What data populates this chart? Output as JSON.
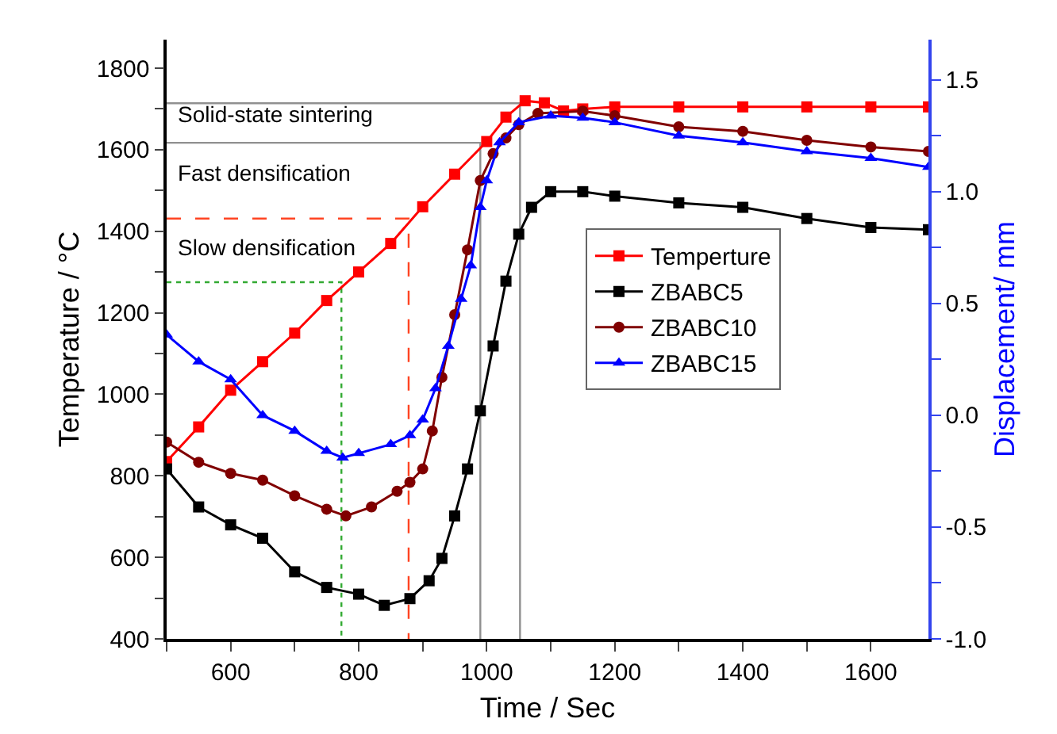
{
  "chart_data": {
    "type": "line",
    "xlabel": "Time / Sec",
    "ylabel": "Temperature / °C",
    "y2label": "Displacement/ mm",
    "xlim": [
      500,
      1690
    ],
    "ylim": [
      400,
      1870
    ],
    "y2lim": [
      -1.0,
      1.68
    ],
    "xticks": [
      {
        "value": 500,
        "label": null
      },
      600,
      {
        "value": 700,
        "label": null
      },
      800,
      {
        "value": 900,
        "label": null
      },
      1000,
      {
        "value": 1100,
        "label": null
      },
      1200,
      {
        "value": 1300,
        "label": null
      },
      1400,
      {
        "value": 1500,
        "label": null
      },
      1600
    ],
    "yticks": [
      400,
      {
        "value": 500,
        "label": null
      },
      600,
      {
        "value": 700,
        "label": null
      },
      800,
      {
        "value": 900,
        "label": null
      },
      1000,
      {
        "value": 1100,
        "label": null
      },
      1200,
      {
        "value": 1300,
        "label": null
      },
      1400,
      {
        "value": 1500,
        "label": null
      },
      1600,
      {
        "value": 1700,
        "label": null
      },
      1800
    ],
    "y2ticks": [
      {
        "value": -1.0,
        "label": "-1.0"
      },
      {
        "value": -0.75,
        "label": null
      },
      {
        "value": -0.5,
        "label": "-0.5"
      },
      {
        "value": -0.25,
        "label": null
      },
      {
        "value": 0,
        "label": "0.0"
      },
      {
        "value": 0.25,
        "label": null
      },
      {
        "value": 0.5,
        "label": "0.5"
      },
      {
        "value": 0.75,
        "label": null
      },
      {
        "value": 1.0,
        "label": "1.0"
      },
      {
        "value": 1.25,
        "label": null
      },
      {
        "value": 1.5,
        "label": "1.5"
      }
    ],
    "grid": false,
    "legend": "right",
    "annotations": [
      "Solid-state sintering",
      "Fast densification",
      "Slow densification"
    ],
    "series": [
      {
        "color": "#909090",
        "line_style": "solid",
        "marker": "none",
        "x": [
          500,
          1052,
          1052
        ],
        "values": [
          1714,
          1714,
          400
        ]
      },
      {
        "color": "#909090",
        "line_style": "solid",
        "marker": "none",
        "x": [
          500,
          990,
          990
        ],
        "values": [
          1617,
          1617,
          400
        ]
      },
      {
        "color": "#ff4422",
        "line_style": "dashed",
        "marker": "none",
        "x": [
          500,
          878,
          878
        ],
        "values": [
          1431,
          1431,
          400
        ]
      },
      {
        "color": "#33aa33",
        "line_style": "dotted",
        "marker": "none",
        "x": [
          500,
          773,
          773
        ],
        "values": [
          1275,
          1275,
          400
        ]
      },
      {
        "name": "Temperture",
        "color": "#ff0000",
        "marker": "square",
        "x": [
          500,
          550,
          600,
          650,
          700,
          750,
          800,
          850,
          900,
          950,
          1000,
          1030,
          1060,
          1090,
          1120,
          1150,
          1200,
          1300,
          1400,
          1500,
          1600,
          1690
        ],
        "values": [
          835,
          920,
          1010,
          1080,
          1150,
          1230,
          1300,
          1370,
          1460,
          1540,
          1620,
          1680,
          1720,
          1715,
          1695,
          1700,
          1705,
          1705,
          1705,
          1705,
          1705,
          1705
        ]
      },
      {
        "name": "ZBABC5",
        "axis": "y2",
        "color": "#000000",
        "marker": "square",
        "x": [
          500,
          550,
          600,
          650,
          700,
          750,
          800,
          840,
          880,
          910,
          930,
          950,
          970,
          990,
          1010,
          1030,
          1050,
          1070,
          1100,
          1150,
          1200,
          1300,
          1400,
          1500,
          1600,
          1690
        ],
        "values": [
          -0.24,
          -0.41,
          -0.49,
          -0.55,
          -0.7,
          -0.77,
          -0.8,
          -0.85,
          -0.82,
          -0.74,
          -0.64,
          -0.45,
          -0.24,
          0.02,
          0.31,
          0.6,
          0.81,
          0.93,
          1.0,
          1.0,
          0.98,
          0.95,
          0.93,
          0.88,
          0.84,
          0.83
        ]
      },
      {
        "name": "ZBABC10",
        "axis": "y2",
        "color": "#800000",
        "marker": "circle",
        "x": [
          500,
          550,
          600,
          650,
          700,
          750,
          780,
          820,
          860,
          880,
          900,
          915,
          930,
          950,
          970,
          990,
          1010,
          1030,
          1050,
          1080,
          1150,
          1200,
          1300,
          1400,
          1500,
          1600,
          1690
        ],
        "values": [
          -0.12,
          -0.21,
          -0.26,
          -0.29,
          -0.36,
          -0.42,
          -0.45,
          -0.41,
          -0.34,
          -0.3,
          -0.24,
          -0.07,
          0.17,
          0.45,
          0.74,
          1.05,
          1.17,
          1.24,
          1.3,
          1.35,
          1.36,
          1.34,
          1.29,
          1.27,
          1.23,
          1.2,
          1.18
        ]
      },
      {
        "name": "ZBABC15",
        "axis": "y2",
        "color": "#0000ff",
        "marker": "triangle",
        "x": [
          500,
          550,
          600,
          650,
          700,
          750,
          775,
          800,
          850,
          880,
          900,
          920,
          940,
          960,
          975,
          990,
          1000,
          1020,
          1050,
          1100,
          1150,
          1200,
          1300,
          1400,
          1500,
          1600,
          1690
        ],
        "values": [
          0.36,
          0.24,
          0.16,
          0.0,
          -0.07,
          -0.16,
          -0.19,
          -0.17,
          -0.13,
          -0.09,
          -0.02,
          0.12,
          0.31,
          0.52,
          0.67,
          0.93,
          1.05,
          1.22,
          1.31,
          1.34,
          1.33,
          1.31,
          1.25,
          1.22,
          1.18,
          1.15,
          1.11
        ]
      }
    ]
  }
}
